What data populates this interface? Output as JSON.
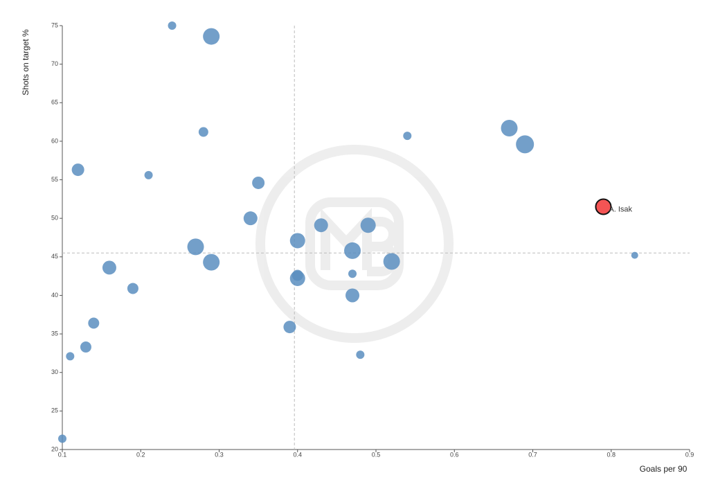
{
  "chart_data": {
    "type": "scatter",
    "x_label": "Goals per 90",
    "y_label": "Shots on target %",
    "xlim": [
      0.1,
      0.9
    ],
    "ylim": [
      20,
      75
    ],
    "xticks": [
      0.1,
      0.2,
      0.3,
      0.4,
      0.5,
      0.6,
      0.7,
      0.8,
      0.9
    ],
    "yticks": [
      20,
      25,
      30,
      35,
      40,
      45,
      50,
      55,
      60,
      65,
      70,
      75
    ],
    "color": "#5b8ec0",
    "x": [
      0.1,
      0.11,
      0.12,
      0.13,
      0.14,
      0.16,
      0.19,
      0.21,
      0.24,
      0.27,
      0.28,
      0.29,
      0.29,
      0.34,
      0.35,
      0.39,
      0.4,
      0.4,
      0.4,
      0.43,
      0.47,
      0.47,
      0.47,
      0.48,
      0.49,
      0.52,
      0.54,
      0.67,
      0.69,
      0.83
    ],
    "y": [
      21.4,
      32.1,
      56.3,
      33.3,
      36.4,
      43.6,
      40.9,
      55.6,
      75.0,
      46.3,
      61.2,
      73.6,
      44.3,
      50.0,
      54.6,
      35.9,
      47.1,
      42.6,
      42.2,
      49.1,
      45.8,
      42.8,
      40.0,
      32.3,
      49.1,
      44.4,
      60.7,
      61.7,
      59.6,
      45.2
    ],
    "sizes": [
      6,
      6,
      9,
      8,
      8,
      10,
      8,
      6,
      6,
      12,
      7,
      12,
      12,
      10,
      9,
      9,
      11,
      8,
      11,
      10,
      12,
      6,
      10,
      6,
      11,
      12,
      6,
      12,
      13,
      5
    ],
    "highlight": {
      "label": "A. Isak",
      "x": 0.79,
      "y": 51.5,
      "size": 11,
      "color": "#f45454"
    },
    "reference_lines": {
      "x": 0.396,
      "y": 45.5
    }
  }
}
